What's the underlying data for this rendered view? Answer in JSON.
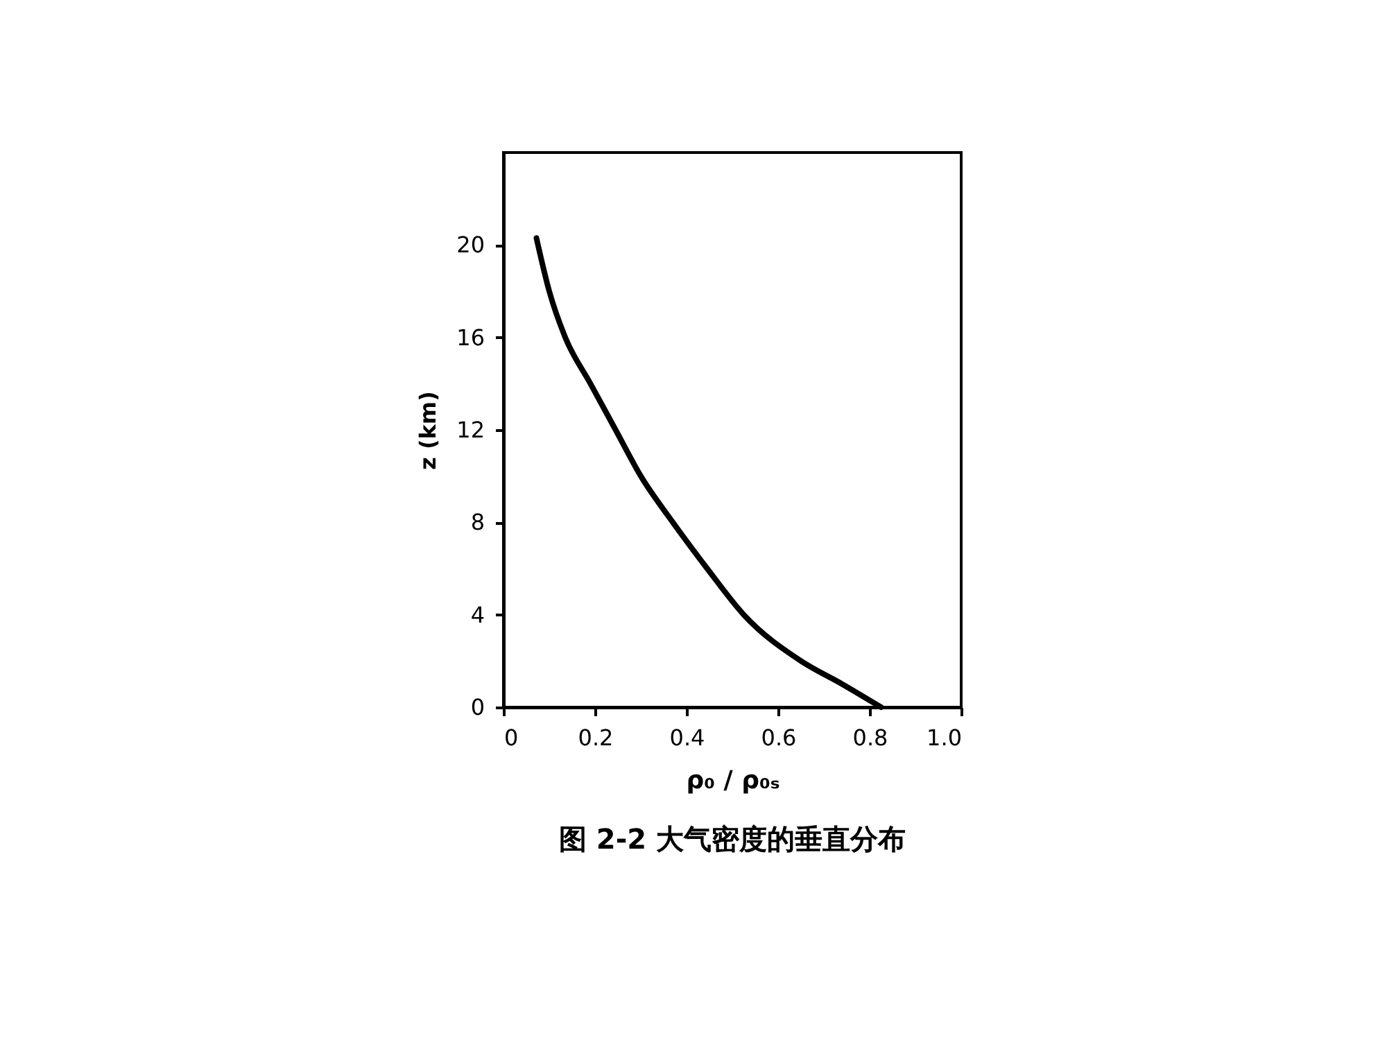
{
  "chart_data": {
    "type": "line",
    "title": "图 2-2  大气密度的垂直分布",
    "xlabel": "ρ₀ / ρ₀ₛ",
    "ylabel": "z (km)",
    "x": [
      0.072,
      0.1,
      0.135,
      0.19,
      0.245,
      0.3,
      0.37,
      0.445,
      0.525,
      0.65,
      0.74,
      0.825
    ],
    "series": [
      {
        "color": "#000000",
        "values": [
          20.3,
          18,
          16,
          14,
          12,
          10,
          8,
          6,
          4,
          2,
          1,
          0
        ]
      }
    ],
    "xlim": [
      0,
      1.0
    ],
    "xticks": [
      0,
      {
        "value": 0.2,
        "label": "0.2"
      },
      {
        "value": 0.4,
        "label": "0.4"
      },
      {
        "value": 0.6,
        "label": "0.6"
      },
      {
        "value": 0.8,
        "label": "0.8"
      },
      {
        "value": 1.0,
        "label": "1.0"
      }
    ],
    "ylim": [
      0,
      24
    ],
    "yticks": [
      0,
      4,
      8,
      12,
      16,
      20
    ],
    "grid": false,
    "marker": "none",
    "line_style": "solid"
  }
}
